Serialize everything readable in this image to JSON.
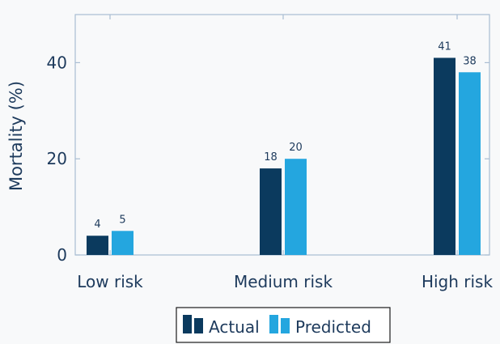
{
  "chart_data": {
    "type": "bar",
    "categories": [
      "Low risk",
      "Medium risk",
      "High risk"
    ],
    "series": [
      {
        "name": "Actual",
        "values": [
          4,
          18,
          41
        ],
        "color": "#0b3a5e"
      },
      {
        "name": "Predicted",
        "values": [
          5,
          20,
          38
        ],
        "color": "#24a6df"
      }
    ],
    "ylabel": "Mortality (%)",
    "ylim": [
      0,
      50
    ],
    "yticks": [
      0,
      20,
      40
    ],
    "grid": false,
    "legend_position": "bottom-center",
    "axis_color": "#a9bdd3",
    "text_color": "#1d3a5c"
  }
}
